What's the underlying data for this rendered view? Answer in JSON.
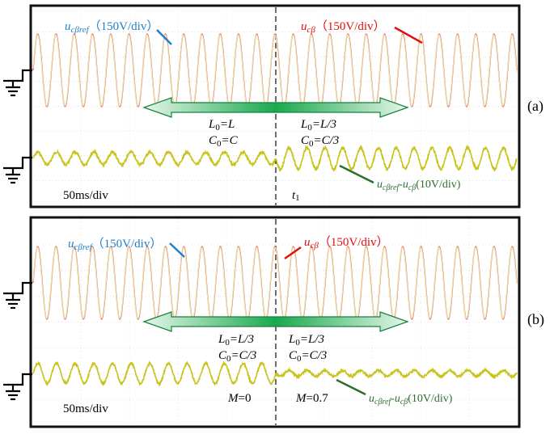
{
  "colors": {
    "ref_trace": "#e5687c",
    "meas_trace": "#e8e6a0",
    "error_trace": "#c8c41c",
    "ref_label": "#1f7fc8",
    "meas_label": "#e01010",
    "err_label": "#2e6e2e",
    "arrow_green": "#1db154",
    "grid": "#c8c8c8"
  },
  "panels": [
    {
      "id": "a",
      "panel_label": "(a)",
      "ref_label": {
        "sym": "u",
        "sub": "cβref",
        "scale": "（150V/div）"
      },
      "meas_label": {
        "sym": "u",
        "sub": "cβ",
        "scale": "（150V/div）"
      },
      "err_label": {
        "sym1": "u",
        "sub1": "cβref",
        "dash": "-",
        "sym2": "u",
        "sub2": "cβ",
        "scale": "(10V/div)"
      },
      "left_params": {
        "l_sym": "L",
        "l_sub": "0",
        "l_val": "=L",
        "c_sym": "C",
        "c_sub": "0",
        "c_val": "=C"
      },
      "right_params": {
        "l_sym": "L",
        "l_sub": "0",
        "l_val": "=L/3",
        "c_sym": "C",
        "c_sub": "0",
        "c_val": "=C/3"
      },
      "timebase": "50ms/div",
      "marker_left": "",
      "marker_right": {
        "sym": "t",
        "sub": "1"
      }
    },
    {
      "id": "b",
      "panel_label": "(b)",
      "ref_label": {
        "sym": "u",
        "sub": "cβref",
        "scale": "（150V/div）"
      },
      "meas_label": {
        "sym": "u",
        "sub": "cβ",
        "scale": "（150V/div）"
      },
      "err_label": {
        "sym1": "u",
        "sub1": "cβref",
        "dash": "-",
        "sym2": "u",
        "sub2": "cβ",
        "scale": "(10V/div)"
      },
      "left_params": {
        "l_sym": "L",
        "l_sub": "0",
        "l_val": "=L/3",
        "c_sym": "C",
        "c_sub": "0",
        "c_val": "=C/3"
      },
      "right_params": {
        "l_sym": "L",
        "l_sub": "0",
        "l_val": "=L/3",
        "c_sym": "C",
        "c_sub": "0",
        "c_val": "=C/3"
      },
      "timebase": "50ms/div",
      "marker_left": {
        "sym": "M",
        "val": "=0"
      },
      "marker_right": {
        "sym": "M",
        "val": "=0.7"
      }
    }
  ],
  "chart_data": [
    {
      "type": "line",
      "panel": "(a)",
      "time_per_div_ms": 50,
      "divisions": 10,
      "switch_time_div": 5,
      "series": [
        {
          "name": "ucβref",
          "scale_V_per_div": 150,
          "cycles": 26.5,
          "amplitude_div": 1.45
        },
        {
          "name": "ucβ",
          "scale_V_per_div": 150,
          "cycles": 26.5,
          "amplitude_div": 1.45
        },
        {
          "name": "ucβref-ucβ",
          "scale_V_per_div": 10,
          "cycles_before": 13,
          "amplitude_before_div": 0.25,
          "cycles_after": 13.5,
          "amplitude_after_div": 0.42
        }
      ]
    },
    {
      "type": "line",
      "panel": "(b)",
      "time_per_div_ms": 50,
      "divisions": 10,
      "switch_time_div": 5,
      "series": [
        {
          "name": "ucβref",
          "scale_V_per_div": 150,
          "cycles": 26.5,
          "amplitude_div": 1.45
        },
        {
          "name": "ucβ",
          "scale_V_per_div": 150,
          "cycles": 26.5,
          "amplitude_div": 1.45
        },
        {
          "name": "ucβref-ucβ",
          "scale_V_per_div": 10,
          "cycles_before": 13,
          "amplitude_before_div": 0.4,
          "cycles_after": 13.5,
          "amplitude_after_div": 0.12
        }
      ]
    }
  ]
}
